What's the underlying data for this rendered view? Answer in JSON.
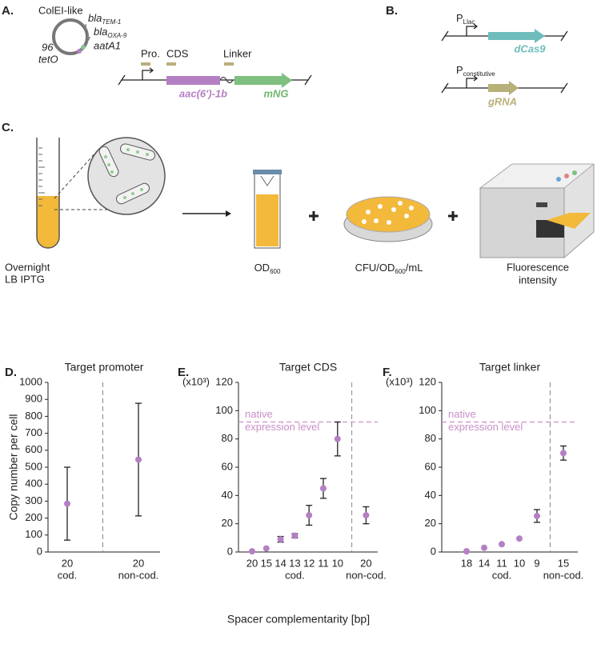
{
  "panel_a": {
    "label": "A.",
    "plasmid": {
      "backbone": "ColEI-like",
      "genes": [
        {
          "name": "bla",
          "sub": "TEM-1"
        },
        {
          "name": "bla",
          "sub": "OXA-9"
        },
        {
          "name": "aatA1"
        }
      ],
      "origin": "96",
      "operator": "tetO"
    },
    "regions": [
      "Pro.",
      "CDS",
      "Linker"
    ],
    "genes": [
      "aac(6')-1b",
      "mNG"
    ]
  },
  "panel_b": {
    "label": "B.",
    "constructs": [
      {
        "promoter": {
          "name": "P",
          "sub": "Llac"
        },
        "gene": "dCas9"
      },
      {
        "promoter": {
          "name": "P",
          "sub": "constitutive"
        },
        "gene": "gRNA"
      }
    ]
  },
  "panel_c": {
    "label": "C.",
    "culture": [
      "Overnight",
      "LB IPTG"
    ],
    "od": {
      "name": "OD",
      "sub": "600"
    },
    "cfu": {
      "name": "CFU/OD",
      "sub": "600",
      "suffix": "/mL"
    },
    "fluorescence": [
      "Fluorescence",
      "intensity"
    ]
  },
  "xlabel": "Spacer complementarity [bp]",
  "chart_data": [
    {
      "type": "point",
      "panel": "D.",
      "title": "Target promoter",
      "ylabel": "Copy number per cell",
      "ylim": [
        0,
        1000
      ],
      "yticks": [
        0,
        100,
        200,
        300,
        400,
        500,
        600,
        700,
        800,
        900,
        1000
      ],
      "category_groups": [
        {
          "label": "cod.",
          "categories": [
            "20"
          ]
        },
        {
          "label": "non-cod.",
          "categories": [
            "20"
          ]
        }
      ],
      "values": [
        285,
        545
      ],
      "errors": [
        215,
        332
      ],
      "color": "#b57fc4",
      "error_color": "#222"
    },
    {
      "type": "point",
      "panel": "E.",
      "title": "Target CDS",
      "unit": "(x10³)",
      "ylim": [
        0,
        120
      ],
      "yticks": [
        0,
        20,
        40,
        60,
        80,
        100,
        120
      ],
      "category_groups": [
        {
          "label": "cod.",
          "categories": [
            "20",
            "15",
            "14",
            "13",
            "12",
            "11",
            "10"
          ]
        },
        {
          "label": "non-cod.",
          "categories": [
            "20"
          ]
        }
      ],
      "values": [
        0.5,
        2.5,
        9,
        11.5,
        26,
        45,
        80,
        26
      ],
      "errors": [
        null,
        null,
        2,
        1.5,
        7,
        7,
        12,
        6
      ],
      "reference": {
        "value": 92,
        "label": [
          "native",
          "expression level"
        ],
        "color": "#c98fc7"
      },
      "color": "#b57fc4",
      "error_color": "#222"
    },
    {
      "type": "point",
      "panel": "F.",
      "title": "Target linker",
      "unit": "(x10³)",
      "ylim": [
        0,
        120
      ],
      "yticks": [
        0,
        20,
        40,
        60,
        80,
        100,
        120
      ],
      "category_groups": [
        {
          "label": "cod.",
          "categories": [
            "18",
            "14",
            "11",
            "10",
            "9"
          ]
        },
        {
          "label": "non-cod.",
          "categories": [
            "15"
          ]
        }
      ],
      "values": [
        0.5,
        3,
        5.5,
        9.5,
        25.5,
        70
      ],
      "errors": [
        null,
        null,
        null,
        null,
        4.5,
        5
      ],
      "reference": {
        "value": 92,
        "label": [
          "native",
          "expression level"
        ],
        "color": "#c98fc7"
      },
      "color": "#b57fc4",
      "error_color": "#222"
    }
  ]
}
